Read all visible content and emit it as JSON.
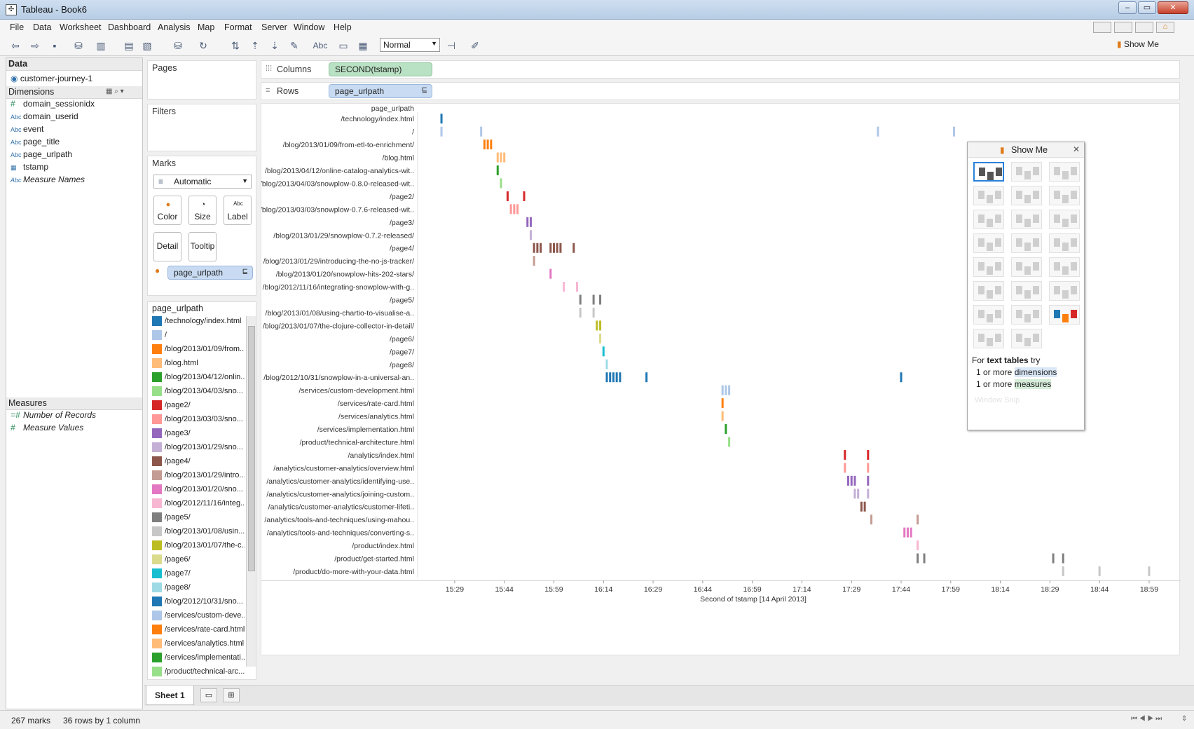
{
  "window": {
    "title": "Tableau - Book6"
  },
  "menu": [
    "File",
    "Data",
    "Worksheet",
    "Dashboard",
    "Analysis",
    "Map",
    "Format",
    "Server",
    "Window",
    "Help"
  ],
  "toolbar": {
    "fit_select": "Normal",
    "abc_label": "Abc",
    "show_me_label": "Show Me"
  },
  "data_panel": {
    "header": "Data",
    "datasource": "customer-journey-1",
    "dimensions_header": "Dimensions",
    "dimensions": [
      {
        "type": "#",
        "name": "domain_sessionidx",
        "italic": false
      },
      {
        "type": "Abc",
        "name": "domain_userid",
        "italic": false
      },
      {
        "type": "Abc",
        "name": "event",
        "italic": false
      },
      {
        "type": "Abc",
        "name": "page_title",
        "italic": false
      },
      {
        "type": "Abc",
        "name": "page_urlpath",
        "italic": false
      },
      {
        "type": "date",
        "name": "tstamp",
        "italic": false
      },
      {
        "type": "Abc",
        "name": "Measure Names",
        "italic": true
      }
    ],
    "measures_header": "Measures",
    "measures": [
      {
        "type": "=#",
        "name": "Number of Records"
      },
      {
        "type": "#",
        "name": "Measure Values"
      }
    ]
  },
  "shelves": {
    "pages": "Pages",
    "filters": "Filters",
    "marks": "Marks",
    "mark_type": "Automatic",
    "mark_buttons": [
      "Color",
      "Size",
      "Label",
      "Detail",
      "Tooltip"
    ],
    "color_pill": "page_urlpath",
    "columns_label": "Columns",
    "columns_pill": "SECOND(tstamp)",
    "rows_label": "Rows",
    "rows_pill": "page_urlpath"
  },
  "legend": {
    "title": "page_urlpath",
    "items": [
      {
        "label": "/technology/index.html",
        "color": "#1f77b4"
      },
      {
        "label": "/",
        "color": "#aec7e8"
      },
      {
        "label": "/blog/2013/01/09/from...",
        "color": "#ff7f0e"
      },
      {
        "label": "/blog.html",
        "color": "#ffbb78"
      },
      {
        "label": "/blog/2013/04/12/onlin...",
        "color": "#2ca02c"
      },
      {
        "label": "/blog/2013/04/03/sno...",
        "color": "#98df8a"
      },
      {
        "label": "/page2/",
        "color": "#d62728"
      },
      {
        "label": "/blog/2013/03/03/sno...",
        "color": "#ff9896"
      },
      {
        "label": "/page3/",
        "color": "#9467bd"
      },
      {
        "label": "/blog/2013/01/29/sno...",
        "color": "#c5b0d5"
      },
      {
        "label": "/page4/",
        "color": "#8c564b"
      },
      {
        "label": "/blog/2013/01/29/intro...",
        "color": "#c49c94"
      },
      {
        "label": "/blog/2013/01/20/sno...",
        "color": "#e377c2"
      },
      {
        "label": "/blog/2012/11/16/integ...",
        "color": "#f7b6d2"
      },
      {
        "label": "/page5/",
        "color": "#7f7f7f"
      },
      {
        "label": "/blog/2013/01/08/usin...",
        "color": "#c7c7c7"
      },
      {
        "label": "/blog/2013/01/07/the-c...",
        "color": "#bcbd22"
      },
      {
        "label": "/page6/",
        "color": "#dbdb8d"
      },
      {
        "label": "/page7/",
        "color": "#17becf"
      },
      {
        "label": "/page8/",
        "color": "#9edae5"
      },
      {
        "label": "/blog/2012/10/31/sno...",
        "color": "#1f77b4"
      },
      {
        "label": "/services/custom-deve...",
        "color": "#aec7e8"
      },
      {
        "label": "/services/rate-card.html",
        "color": "#ff7f0e"
      },
      {
        "label": "/services/analytics.html",
        "color": "#ffbb78"
      },
      {
        "label": "/services/implementati...",
        "color": "#2ca02c"
      },
      {
        "label": "/product/technical-arc...",
        "color": "#98df8a"
      }
    ]
  },
  "chart_data": {
    "type": "scatter",
    "mark": "gantt-tick",
    "row_header": "page_urlpath",
    "xlabel": "Second of tstamp [14 April 2013]",
    "x_ticks": [
      "15:29",
      "15:44",
      "15:59",
      "16:14",
      "16:29",
      "16:44",
      "16:59",
      "17:14",
      "17:29",
      "17:44",
      "17:59",
      "18:14",
      "18:29",
      "18:44",
      "18:59"
    ],
    "xlim": [
      "15:18",
      "19:06"
    ],
    "rows": [
      {
        "label": "/technology/index.html",
        "color": "#1f77b4",
        "times": [
          "15:25"
        ]
      },
      {
        "label": "/",
        "color": "#aec7e8",
        "times": [
          "15:25",
          "15:37",
          "17:37",
          "18:00"
        ]
      },
      {
        "label": "/blog/2013/01/09/from-etl-to-enrichment/",
        "color": "#ff7f0e",
        "times": [
          "15:38",
          "15:39",
          "15:40"
        ]
      },
      {
        "label": "/blog.html",
        "color": "#ffbb78",
        "times": [
          "15:42",
          "15:43",
          "15:44"
        ]
      },
      {
        "label": "/blog/2013/04/12/online-catalog-analytics-wit..",
        "color": "#2ca02c",
        "times": [
          "15:42"
        ]
      },
      {
        "label": "/blog/2013/04/03/snowplow-0.8.0-released-wit..",
        "color": "#98df8a",
        "times": [
          "15:43"
        ]
      },
      {
        "label": "/page2/",
        "color": "#d62728",
        "times": [
          "15:45",
          "15:50"
        ]
      },
      {
        "label": "/blog/2013/03/03/snowplow-0.7.6-released-wit..",
        "color": "#ff9896",
        "times": [
          "15:46",
          "15:47",
          "15:48"
        ]
      },
      {
        "label": "/page3/",
        "color": "#9467bd",
        "times": [
          "15:51",
          "15:52"
        ]
      },
      {
        "label": "/blog/2013/01/29/snowplow-0.7.2-released/",
        "color": "#c5b0d5",
        "times": [
          "15:52"
        ]
      },
      {
        "label": "/page4/",
        "color": "#8c564b",
        "times": [
          "15:53",
          "15:54",
          "15:55",
          "15:58",
          "15:59",
          "16:00",
          "16:01",
          "16:05"
        ]
      },
      {
        "label": "/blog/2013/01/29/introducing-the-no-js-tracker/",
        "color": "#c49c94",
        "times": [
          "15:53"
        ]
      },
      {
        "label": "/blog/2013/01/20/snowplow-hits-202-stars/",
        "color": "#e377c2",
        "times": [
          "15:58"
        ]
      },
      {
        "label": "/blog/2012/11/16/integrating-snowplow-with-g..",
        "color": "#f7b6d2",
        "times": [
          "16:02",
          "16:06"
        ]
      },
      {
        "label": "/page5/",
        "color": "#7f7f7f",
        "times": [
          "16:07",
          "16:11",
          "16:13"
        ]
      },
      {
        "label": "/blog/2013/01/08/using-chartio-to-visualise-a..",
        "color": "#c7c7c7",
        "times": [
          "16:07",
          "16:11"
        ]
      },
      {
        "label": "/blog/2013/01/07/the-clojure-collector-in-detail/",
        "color": "#bcbd22",
        "times": [
          "16:12",
          "16:13"
        ]
      },
      {
        "label": "/page6/",
        "color": "#dbdb8d",
        "times": [
          "16:13"
        ]
      },
      {
        "label": "/page7/",
        "color": "#17becf",
        "times": [
          "16:14"
        ]
      },
      {
        "label": "/page8/",
        "color": "#9edae5",
        "times": [
          "16:15"
        ]
      },
      {
        "label": "/blog/2012/10/31/snowplow-in-a-universal-an..",
        "color": "#1f77b4",
        "times": [
          "16:15",
          "16:16",
          "16:17",
          "16:18",
          "16:19",
          "16:27",
          "17:44"
        ]
      },
      {
        "label": "/services/custom-development.html",
        "color": "#aec7e8",
        "times": [
          "16:50",
          "16:51",
          "16:52"
        ]
      },
      {
        "label": "/services/rate-card.html",
        "color": "#ff7f0e",
        "times": [
          "16:50"
        ]
      },
      {
        "label": "/services/analytics.html",
        "color": "#ffbb78",
        "times": [
          "16:50"
        ]
      },
      {
        "label": "/services/implementation.html",
        "color": "#2ca02c",
        "times": [
          "16:51"
        ]
      },
      {
        "label": "/product/technical-architecture.html",
        "color": "#98df8a",
        "times": [
          "16:52"
        ]
      },
      {
        "label": "/analytics/index.html",
        "color": "#d62728",
        "times": [
          "17:27",
          "17:34"
        ]
      },
      {
        "label": "/analytics/customer-analytics/overview.html",
        "color": "#ff9896",
        "times": [
          "17:27",
          "17:34"
        ]
      },
      {
        "label": "/analytics/customer-analytics/identifying-use..",
        "color": "#9467bd",
        "times": [
          "17:28",
          "17:29",
          "17:30",
          "17:34"
        ]
      },
      {
        "label": "/analytics/customer-analytics/joining-custom..",
        "color": "#c5b0d5",
        "times": [
          "17:30",
          "17:31",
          "17:34"
        ]
      },
      {
        "label": "/analytics/customer-analytics/customer-lifeti..",
        "color": "#8c564b",
        "times": [
          "17:32",
          "17:33"
        ]
      },
      {
        "label": "/analytics/tools-and-techniques/using-mahou..",
        "color": "#c49c94",
        "times": [
          "17:35",
          "17:49"
        ]
      },
      {
        "label": "/analytics/tools-and-techniques/converting-s..",
        "color": "#e377c2",
        "times": [
          "17:45",
          "17:46",
          "17:47"
        ]
      },
      {
        "label": "/product/index.html",
        "color": "#f7b6d2",
        "times": [
          "17:49"
        ]
      },
      {
        "label": "/product/get-started.html",
        "color": "#7f7f7f",
        "times": [
          "17:49",
          "17:51",
          "18:30",
          "18:33"
        ]
      },
      {
        "label": "/product/do-more-with-your-data.html",
        "color": "#c7c7c7",
        "times": [
          "18:33",
          "18:44",
          "18:59"
        ]
      }
    ]
  },
  "show_me": {
    "title": "Show Me",
    "hint_prefix": "For",
    "hint_bold": "text tables",
    "hint_suffix": "try",
    "req1_prefix": "1 or more",
    "req1_link": "dimensions",
    "req2_prefix": "1 or more",
    "req2_link": "measures",
    "faded_text": "Window Snip"
  },
  "sheet_tabs": {
    "active": "Sheet 1"
  },
  "status": {
    "marks": "267 marks",
    "rows": "36 rows by 1 column"
  }
}
